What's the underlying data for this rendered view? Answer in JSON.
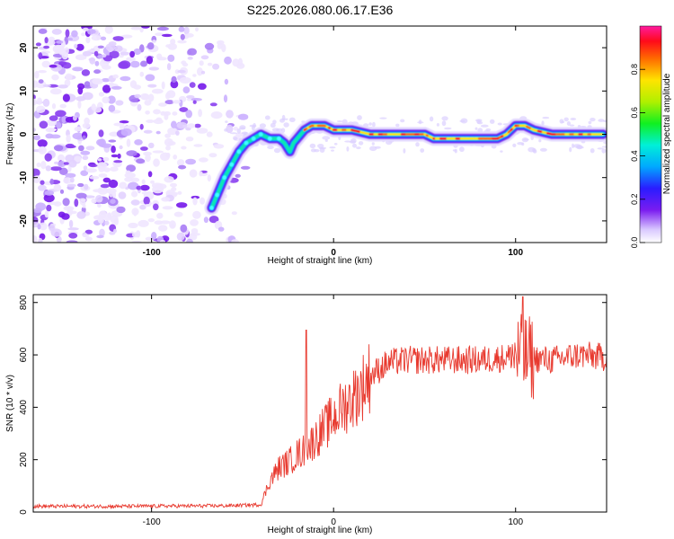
{
  "title": "S225.2026.080.06.17.E36",
  "chart_data": [
    {
      "type": "heatmap",
      "xlabel": "Height of straight line (km)",
      "ylabel": "Frequency (Hz)",
      "xlim": [
        -165,
        150
      ],
      "ylim": [
        -25,
        25
      ],
      "xticks": [
        -100,
        0,
        100
      ],
      "yticks": [
        -20,
        -10,
        0,
        10,
        20
      ],
      "colorbar": {
        "label": "Normalized spectral amplitude",
        "range": [
          0,
          1
        ],
        "ticks": [
          0.0,
          0.2,
          0.4,
          0.6,
          0.8
        ]
      },
      "ridge": {
        "x": [
          -67,
          -64,
          -60,
          -56,
          -52,
          -48,
          -44,
          -40,
          -35,
          -30,
          -27,
          -24,
          -22,
          -20,
          -16,
          -12,
          -5,
          0,
          10,
          20,
          30,
          40,
          50,
          55,
          60,
          70,
          80,
          90,
          95,
          100,
          105,
          110,
          120,
          130,
          140,
          148
        ],
        "y": [
          -17,
          -14,
          -10,
          -7,
          -4,
          -2,
          -1,
          0,
          -1,
          -1,
          -2,
          -4,
          -2,
          -1,
          1,
          2,
          2,
          1,
          1,
          0,
          0,
          0,
          0,
          -1,
          -1,
          -1,
          -1,
          -1,
          0,
          2,
          2,
          1,
          0,
          0,
          0,
          0
        ]
      }
    },
    {
      "type": "line",
      "xlabel": "Height of straight line (km)",
      "ylabel": "SNR (10 * v/v)",
      "xlim": [
        -165,
        150
      ],
      "ylim": [
        0,
        830
      ],
      "xticks": [
        -100,
        0,
        100
      ],
      "yticks": [
        0,
        200,
        400,
        600,
        800
      ],
      "series": [
        {
          "name": "SNR",
          "color": "#e83a2f",
          "x": [
            -165,
            -150,
            -120,
            -90,
            -60,
            -40,
            -35,
            -30,
            -25,
            -20,
            -15,
            -10,
            -5,
            0,
            5,
            10,
            15,
            20,
            30,
            40,
            60,
            80,
            95,
            100,
            105,
            120,
            135,
            150
          ],
          "y": [
            22,
            22,
            22,
            23,
            24,
            28,
            120,
            170,
            190,
            220,
            240,
            280,
            320,
            360,
            400,
            430,
            470,
            520,
            570,
            580,
            580,
            580,
            590,
            600,
            590,
            580,
            600,
            590
          ]
        }
      ],
      "spikes": [
        {
          "x": -15,
          "y": 695
        },
        {
          "x": 104,
          "y": 822
        }
      ]
    }
  ]
}
